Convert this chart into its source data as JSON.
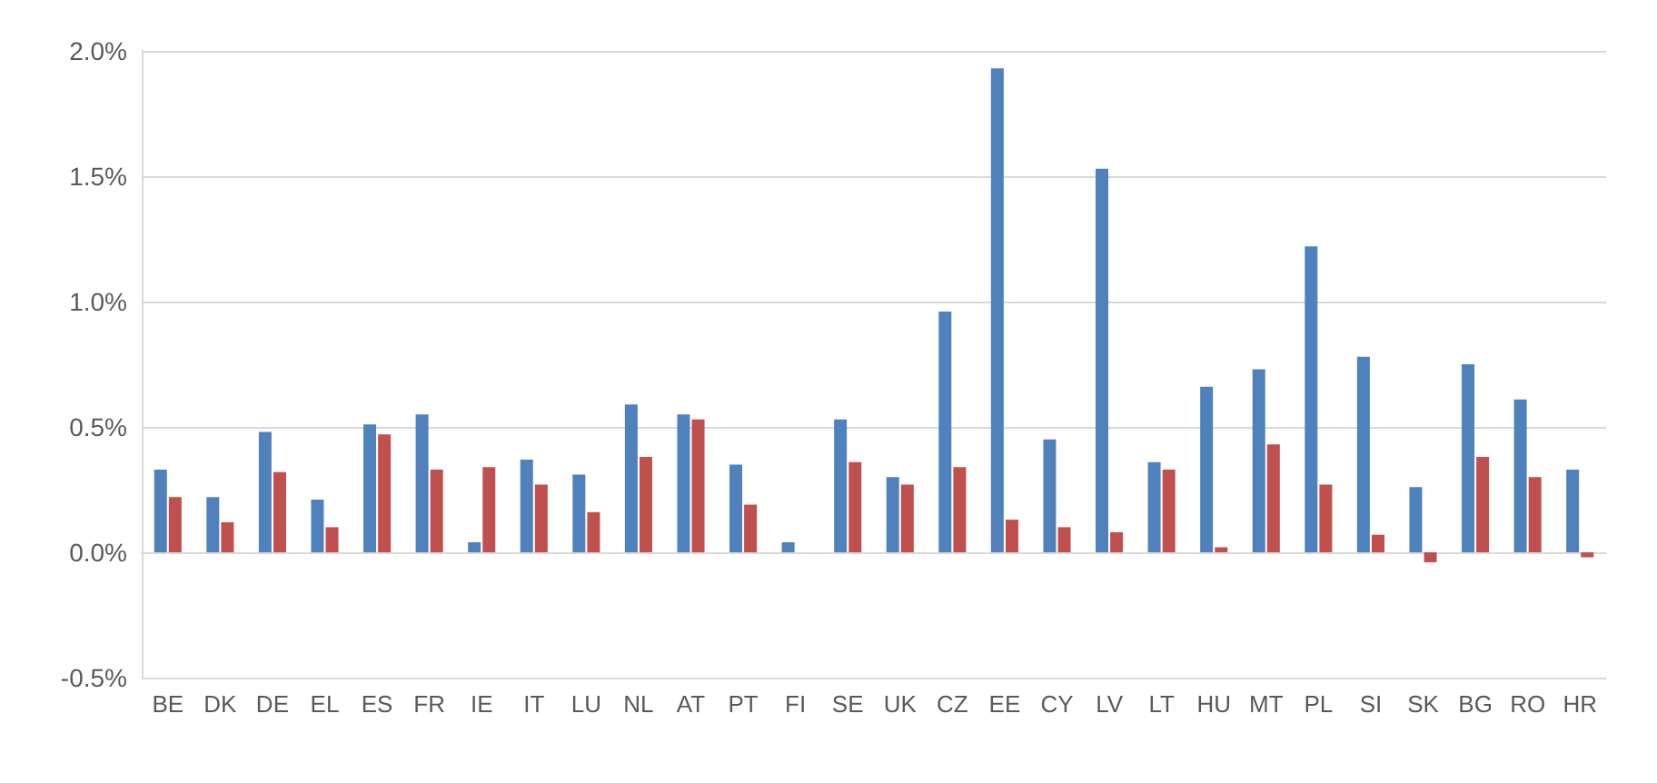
{
  "chart_data": {
    "type": "bar",
    "categories": [
      "BE",
      "DK",
      "DE",
      "EL",
      "ES",
      "FR",
      "IE",
      "IT",
      "LU",
      "NL",
      "AT",
      "PT",
      "FI",
      "SE",
      "UK",
      "CZ",
      "EE",
      "CY",
      "LV",
      "LT",
      "HU",
      "MT",
      "PL",
      "SI",
      "SK",
      "BG",
      "RO",
      "HR"
    ],
    "series": [
      {
        "color": "#4f81bd",
        "values": [
          0.33,
          0.22,
          0.48,
          0.21,
          0.51,
          0.55,
          0.04,
          0.37,
          0.31,
          0.59,
          0.55,
          0.35,
          0.04,
          0.53,
          0.3,
          0.96,
          1.93,
          0.45,
          1.53,
          0.36,
          0.66,
          0.73,
          1.22,
          0.78,
          0.26,
          0.75,
          0.61,
          0.33
        ]
      },
      {
        "color": "#c0504d",
        "values": [
          0.22,
          0.12,
          0.32,
          0.1,
          0.47,
          0.33,
          0.34,
          0.27,
          0.16,
          0.38,
          0.53,
          0.19,
          0.0,
          0.36,
          0.27,
          0.34,
          0.13,
          0.1,
          0.08,
          0.33,
          0.02,
          0.43,
          0.27,
          0.07,
          -0.04,
          0.38,
          0.3,
          -0.02
        ]
      }
    ],
    "ylim": [
      -0.5,
      2.0
    ],
    "yticks": [
      {
        "value": -0.5,
        "label": "-0.5%"
      },
      {
        "value": 0,
        "label": "0.0%"
      },
      {
        "value": 0.5,
        "label": "0.5%"
      },
      {
        "value": 1.0,
        "label": "1.0%"
      },
      {
        "value": 1.5,
        "label": "1.5%"
      },
      {
        "value": 2.0,
        "label": "2.0%"
      }
    ],
    "grid": "y"
  }
}
